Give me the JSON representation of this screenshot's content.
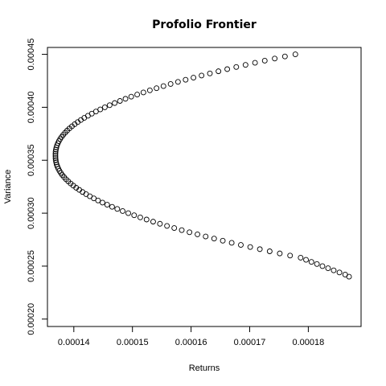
{
  "chart_data": {
    "type": "scatter",
    "title": "Profolio Frontier",
    "xlabel": "Returns",
    "ylabel": "Variance",
    "xlim": [
      0.0001355,
      0.000189
    ],
    "ylim": [
      0.000193,
      0.0004565
    ],
    "x_ticks": [
      "0.00014",
      "0.00015",
      "0.00016",
      "0.00017",
      "0.00018"
    ],
    "x_tick_values": [
      0.00014,
      0.00015,
      0.00016,
      0.00017,
      0.00018
    ],
    "y_ticks": [
      "0.00020",
      "0.00025",
      "0.00030",
      "0.00035",
      "0.00040",
      "0.00045"
    ],
    "y_tick_values": [
      0.0002,
      0.00025,
      0.0003,
      0.00035,
      0.0004,
      0.00045
    ],
    "grid": false,
    "marker": "open circle",
    "series": [
      {
        "x": [
          0.00013687,
          0.00013687,
          0.00013688,
          0.00013689,
          0.00013691,
          0.00013694,
          0.00013698,
          0.00013702,
          0.00013707,
          0.00013713,
          0.0001372,
          0.00013728,
          0.00013736,
          0.00013745,
          0.00013755,
          0.00013766,
          0.00013778,
          0.00013791,
          0.00013804,
          0.00013819,
          0.00013834,
          0.00013851,
          0.00013868,
          0.00013886,
          0.00013905,
          0.00013925,
          0.00013946,
          0.00013968,
          0.00013991,
          0.00014015,
          0.0001404,
          0.00014066,
          0.00014093,
          0.0001412,
          0.00014149,
          0.00014178,
          0.00014209,
          0.00014241,
          0.00014273,
          0.00014307,
          0.00014341,
          0.00014377,
          0.00014413,
          0.00014451,
          0.00014489,
          0.00014529,
          0.00014569,
          0.00014611,
          0.00014653,
          0.00014697,
          0.00014741,
          0.00014787,
          0.00014833,
          0.00014881,
          0.00014929,
          0.00014979,
          0.00015029,
          0.00015081,
          0.00015133,
          0.00015187,
          0.00015241,
          0.00015297,
          0.00015353,
          0.00015411,
          0.00015469,
          0.00015529,
          0.00015589,
          0.00015651,
          0.00015713,
          0.00015777,
          0.00015841,
          0.00015907,
          0.00015973,
          0.00016041,
          0.00016109,
          0.00016179,
          0.00016249,
          0.00016321,
          0.00016393,
          0.00016467,
          0.00016541,
          0.00016617,
          0.00016693,
          0.00016771,
          0.00016849,
          0.00016929,
          0.00017009,
          0.00017091,
          0.00017173,
          0.00017257,
          0.00017341,
          0.00017427,
          0.00017513,
          0.00017601,
          0.00017689,
          0.00017779,
          0.00017869,
          0.00017961,
          0.00018053,
          0.00018147,
          0.00018241,
          0.00018337,
          0.00018433,
          0.00018531,
          0.00018629,
          0.00018695
        ],
        "y": [
          0.000354,
          0.000356,
          0.000352,
          0.000358,
          0.00035,
          0.00036,
          0.000348,
          0.000362,
          0.000346,
          0.000364,
          0.000344,
          0.000366,
          0.000342,
          0.000368,
          0.00034,
          0.00037,
          0.000338,
          0.000372,
          0.000336,
          0.000374,
          0.000334,
          0.000376,
          0.000332,
          0.000378,
          0.00033,
          0.00038,
          0.000328,
          0.000382,
          0.000326,
          0.000384,
          0.000324,
          0.000386,
          0.000322,
          0.000388,
          0.00032,
          0.00039,
          0.000318,
          0.000392,
          0.000316,
          0.000394,
          0.000314,
          0.000396,
          0.000312,
          0.000398,
          0.00031,
          0.0004,
          0.000308,
          0.000402,
          0.000306,
          0.000404,
          0.000304,
          0.000406,
          0.000302,
          0.000408,
          0.0003,
          0.00041,
          0.000298,
          0.000412,
          0.000296,
          0.000414,
          0.000294,
          0.000416,
          0.000292,
          0.000418,
          0.00029,
          0.00042,
          0.000288,
          0.000422,
          0.000286,
          0.000424,
          0.000284,
          0.000426,
          0.000282,
          0.000428,
          0.00028,
          0.00043,
          0.000278,
          0.000432,
          0.000276,
          0.000434,
          0.000274,
          0.000436,
          0.000272,
          0.000438,
          0.00027,
          0.00044,
          0.000268,
          0.000442,
          0.000266,
          0.000444,
          0.000264,
          0.000446,
          0.000262,
          0.000448,
          0.00026,
          0.00045,
          0.000258,
          0.000256,
          0.000254,
          0.000252,
          0.00025,
          0.000248,
          0.000246,
          0.000244,
          0.000242,
          0.00024
        ]
      }
    ]
  }
}
